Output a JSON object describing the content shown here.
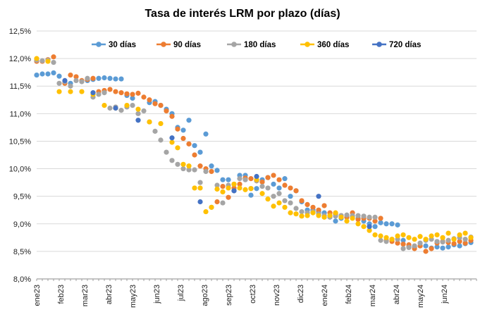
{
  "chart_data": {
    "type": "scatter",
    "title": "Tasa de interés LRM por plazo (días)",
    "xlabel": "",
    "ylabel": "",
    "ylim": [
      8.0,
      12.5
    ],
    "y_ticks": [
      8.0,
      8.5,
      9.0,
      9.5,
      10.0,
      10.5,
      11.0,
      11.5,
      12.0,
      12.5
    ],
    "y_tick_labels": [
      "8,0%",
      "8,5%",
      "9,0%",
      "9,5%",
      "10,0%",
      "10,5%",
      "11,0%",
      "11,5%",
      "12,0%",
      "12,5%"
    ],
    "x_tick_labels": [
      "ene23",
      "feb23",
      "mar23",
      "abr23",
      "may23",
      "jun23",
      "jul23",
      "ago23",
      "sep23",
      "oct23",
      "nov23",
      "dic23",
      "ene24",
      "feb24",
      "mar24",
      "abr24",
      "may24",
      "jun24"
    ],
    "x_unit": "week",
    "x_range_weeks": [
      0,
      78
    ],
    "grid": "horizontal",
    "legend_position": "top",
    "series": [
      {
        "name": "30 días",
        "color": "#5B9BD5",
        "x": [
          0,
          1,
          2,
          3,
          4,
          6,
          9,
          10,
          11,
          12,
          13,
          14,
          15,
          16,
          17,
          20,
          21,
          22,
          23,
          24,
          25,
          26,
          27,
          28,
          29,
          30,
          31,
          32,
          33,
          34,
          35,
          36,
          37,
          38,
          39,
          40,
          41,
          42,
          43,
          44,
          45,
          46,
          47,
          48,
          49,
          50,
          51,
          52,
          53,
          54,
          55,
          56,
          57,
          58,
          59,
          60,
          61,
          62,
          63,
          64,
          65,
          66,
          67,
          68,
          69,
          70,
          71,
          72,
          73,
          74,
          75,
          76,
          77
        ],
        "y": [
          11.7,
          11.72,
          11.72,
          11.74,
          11.68,
          11.55,
          11.6,
          11.62,
          11.64,
          11.65,
          11.64,
          11.63,
          11.63,
          11.33,
          11.28,
          11.2,
          11.22,
          11.15,
          11.08,
          11.0,
          10.75,
          10.7,
          10.88,
          10.42,
          10.3,
          10.63,
          10.05,
          9.97,
          9.8,
          9.8,
          9.6,
          9.88,
          9.88,
          9.52,
          9.64,
          9.8,
          9.84,
          9.72,
          9.65,
          9.82,
          9.5,
          9.6,
          9.4,
          9.25,
          9.25,
          9.22,
          9.2,
          9.15,
          9.05,
          9.1,
          9.12,
          9.14,
          9.1,
          9.05,
          9.0,
          8.95,
          9.02,
          9.0,
          9.0,
          8.98,
          8.7,
          8.58,
          8.58,
          8.6,
          8.6,
          8.56,
          8.58,
          8.56,
          8.58,
          8.62,
          8.6,
          8.64,
          8.66
        ]
      },
      {
        "name": "90 días",
        "color": "#ED7D31",
        "x": [
          0,
          1,
          2,
          3,
          5,
          6,
          7,
          8,
          9,
          10,
          11,
          12,
          13,
          14,
          15,
          16,
          17,
          18,
          19,
          20,
          21,
          22,
          23,
          24,
          25,
          26,
          27,
          28,
          29,
          30,
          31,
          32,
          33,
          34,
          35,
          36,
          37,
          38,
          39,
          40,
          41,
          42,
          43,
          44,
          45,
          46,
          47,
          48,
          49,
          50,
          51,
          52,
          53,
          54,
          55,
          56,
          57,
          58,
          59,
          60,
          61,
          62,
          63,
          64,
          65,
          66,
          67,
          68,
          69,
          70,
          71,
          72,
          73,
          74,
          75,
          76,
          77
        ],
        "y": [
          11.95,
          11.95,
          11.98,
          12.03,
          11.55,
          11.7,
          11.67,
          11.6,
          11.62,
          11.64,
          11.4,
          11.42,
          11.44,
          11.4,
          11.38,
          11.36,
          11.35,
          11.37,
          11.3,
          11.25,
          11.18,
          11.15,
          11.05,
          10.95,
          10.72,
          10.55,
          10.45,
          10.25,
          10.05,
          10.0,
          9.95,
          9.4,
          9.68,
          9.48,
          9.65,
          9.72,
          9.83,
          9.82,
          9.78,
          9.76,
          9.84,
          9.88,
          9.8,
          9.7,
          9.65,
          9.6,
          9.42,
          9.35,
          9.3,
          9.25,
          9.33,
          9.2,
          9.18,
          9.15,
          9.12,
          9.2,
          9.08,
          9.1,
          9.1,
          9.05,
          9.1,
          8.7,
          8.68,
          8.65,
          8.63,
          8.62,
          8.55,
          8.6,
          8.5,
          8.55,
          8.65,
          8.68,
          8.66,
          8.64,
          8.68,
          8.65,
          8.7
        ]
      },
      {
        "name": "180 días",
        "color": "#A5A5A5",
        "x": [
          0,
          1,
          2,
          3,
          4,
          5,
          6,
          7,
          8,
          9,
          10,
          11,
          12,
          13,
          14,
          15,
          16,
          17,
          18,
          19,
          20,
          21,
          22,
          23,
          24,
          25,
          26,
          27,
          28,
          29,
          30,
          31,
          32,
          33,
          34,
          35,
          36,
          37,
          38,
          39,
          40,
          41,
          42,
          43,
          44,
          45,
          46,
          47,
          48,
          49,
          50,
          51,
          52,
          53,
          54,
          55,
          56,
          57,
          58,
          59,
          60,
          61,
          62,
          63,
          64,
          65,
          66,
          67,
          68,
          69,
          70,
          71,
          72,
          73,
          74,
          75,
          76,
          77
        ],
        "y": [
          11.97,
          11.96,
          11.97,
          11.93,
          11.55,
          11.58,
          11.5,
          11.6,
          11.58,
          11.64,
          11.3,
          11.35,
          11.38,
          11.1,
          11.12,
          11.06,
          11.12,
          11.15,
          11.0,
          11.05,
          10.85,
          10.68,
          10.52,
          10.3,
          10.15,
          10.08,
          10.0,
          9.98,
          9.98,
          9.75,
          9.95,
          9.3,
          9.7,
          9.38,
          9.7,
          9.72,
          9.82,
          9.8,
          9.64,
          9.78,
          9.68,
          9.65,
          9.5,
          9.55,
          9.42,
          9.38,
          9.28,
          9.22,
          9.2,
          9.22,
          9.18,
          9.15,
          9.12,
          9.14,
          9.15,
          9.16,
          9.15,
          9.15,
          9.14,
          9.12,
          9.12,
          8.7,
          8.68,
          8.72,
          8.72,
          8.55,
          8.57,
          8.6,
          8.65,
          8.7,
          8.72,
          8.68,
          8.67,
          8.7,
          8.73,
          8.75,
          8.72,
          8.76
        ]
      },
      {
        "name": "360 días",
        "color": "#FFC000",
        "x": [
          0,
          2,
          4,
          6,
          8,
          10,
          12,
          14,
          16,
          18,
          20,
          22,
          24,
          25,
          26,
          27,
          28,
          29,
          30,
          31,
          32,
          33,
          34,
          35,
          36,
          37,
          38,
          39,
          40,
          41,
          42,
          43,
          44,
          45,
          46,
          47,
          48,
          49,
          50,
          51,
          52,
          53,
          54,
          55,
          56,
          57,
          58,
          59,
          60,
          61,
          62,
          63,
          64,
          65,
          66,
          67,
          68,
          69,
          70,
          71,
          72,
          73,
          74,
          75,
          76,
          77
        ],
        "y": [
          12.0,
          11.95,
          11.4,
          11.4,
          11.4,
          11.35,
          11.15,
          11.1,
          11.15,
          11.08,
          10.85,
          10.82,
          10.48,
          10.38,
          10.08,
          10.05,
          9.65,
          9.65,
          9.22,
          9.3,
          9.63,
          9.58,
          9.65,
          9.72,
          9.65,
          9.62,
          9.64,
          9.8,
          9.55,
          9.45,
          9.32,
          9.38,
          9.3,
          9.2,
          9.18,
          9.14,
          9.15,
          9.2,
          9.15,
          9.12,
          9.15,
          9.2,
          9.12,
          9.05,
          9.1,
          9.0,
          8.95,
          8.88,
          8.8,
          8.78,
          8.75,
          8.72,
          8.78,
          8.8,
          8.75,
          8.72,
          8.77,
          8.72,
          8.78,
          8.8,
          8.75,
          8.83,
          8.72,
          8.8,
          8.83,
          8.75
        ]
      },
      {
        "name": "720 días",
        "color": "#4472C4",
        "x": [
          5,
          10,
          14,
          18,
          24,
          29,
          35,
          39,
          50,
          59
        ],
        "y": [
          11.6,
          11.38,
          11.1,
          10.88,
          10.56,
          9.4,
          9.6,
          9.86,
          9.5,
          8.95
        ]
      }
    ]
  }
}
